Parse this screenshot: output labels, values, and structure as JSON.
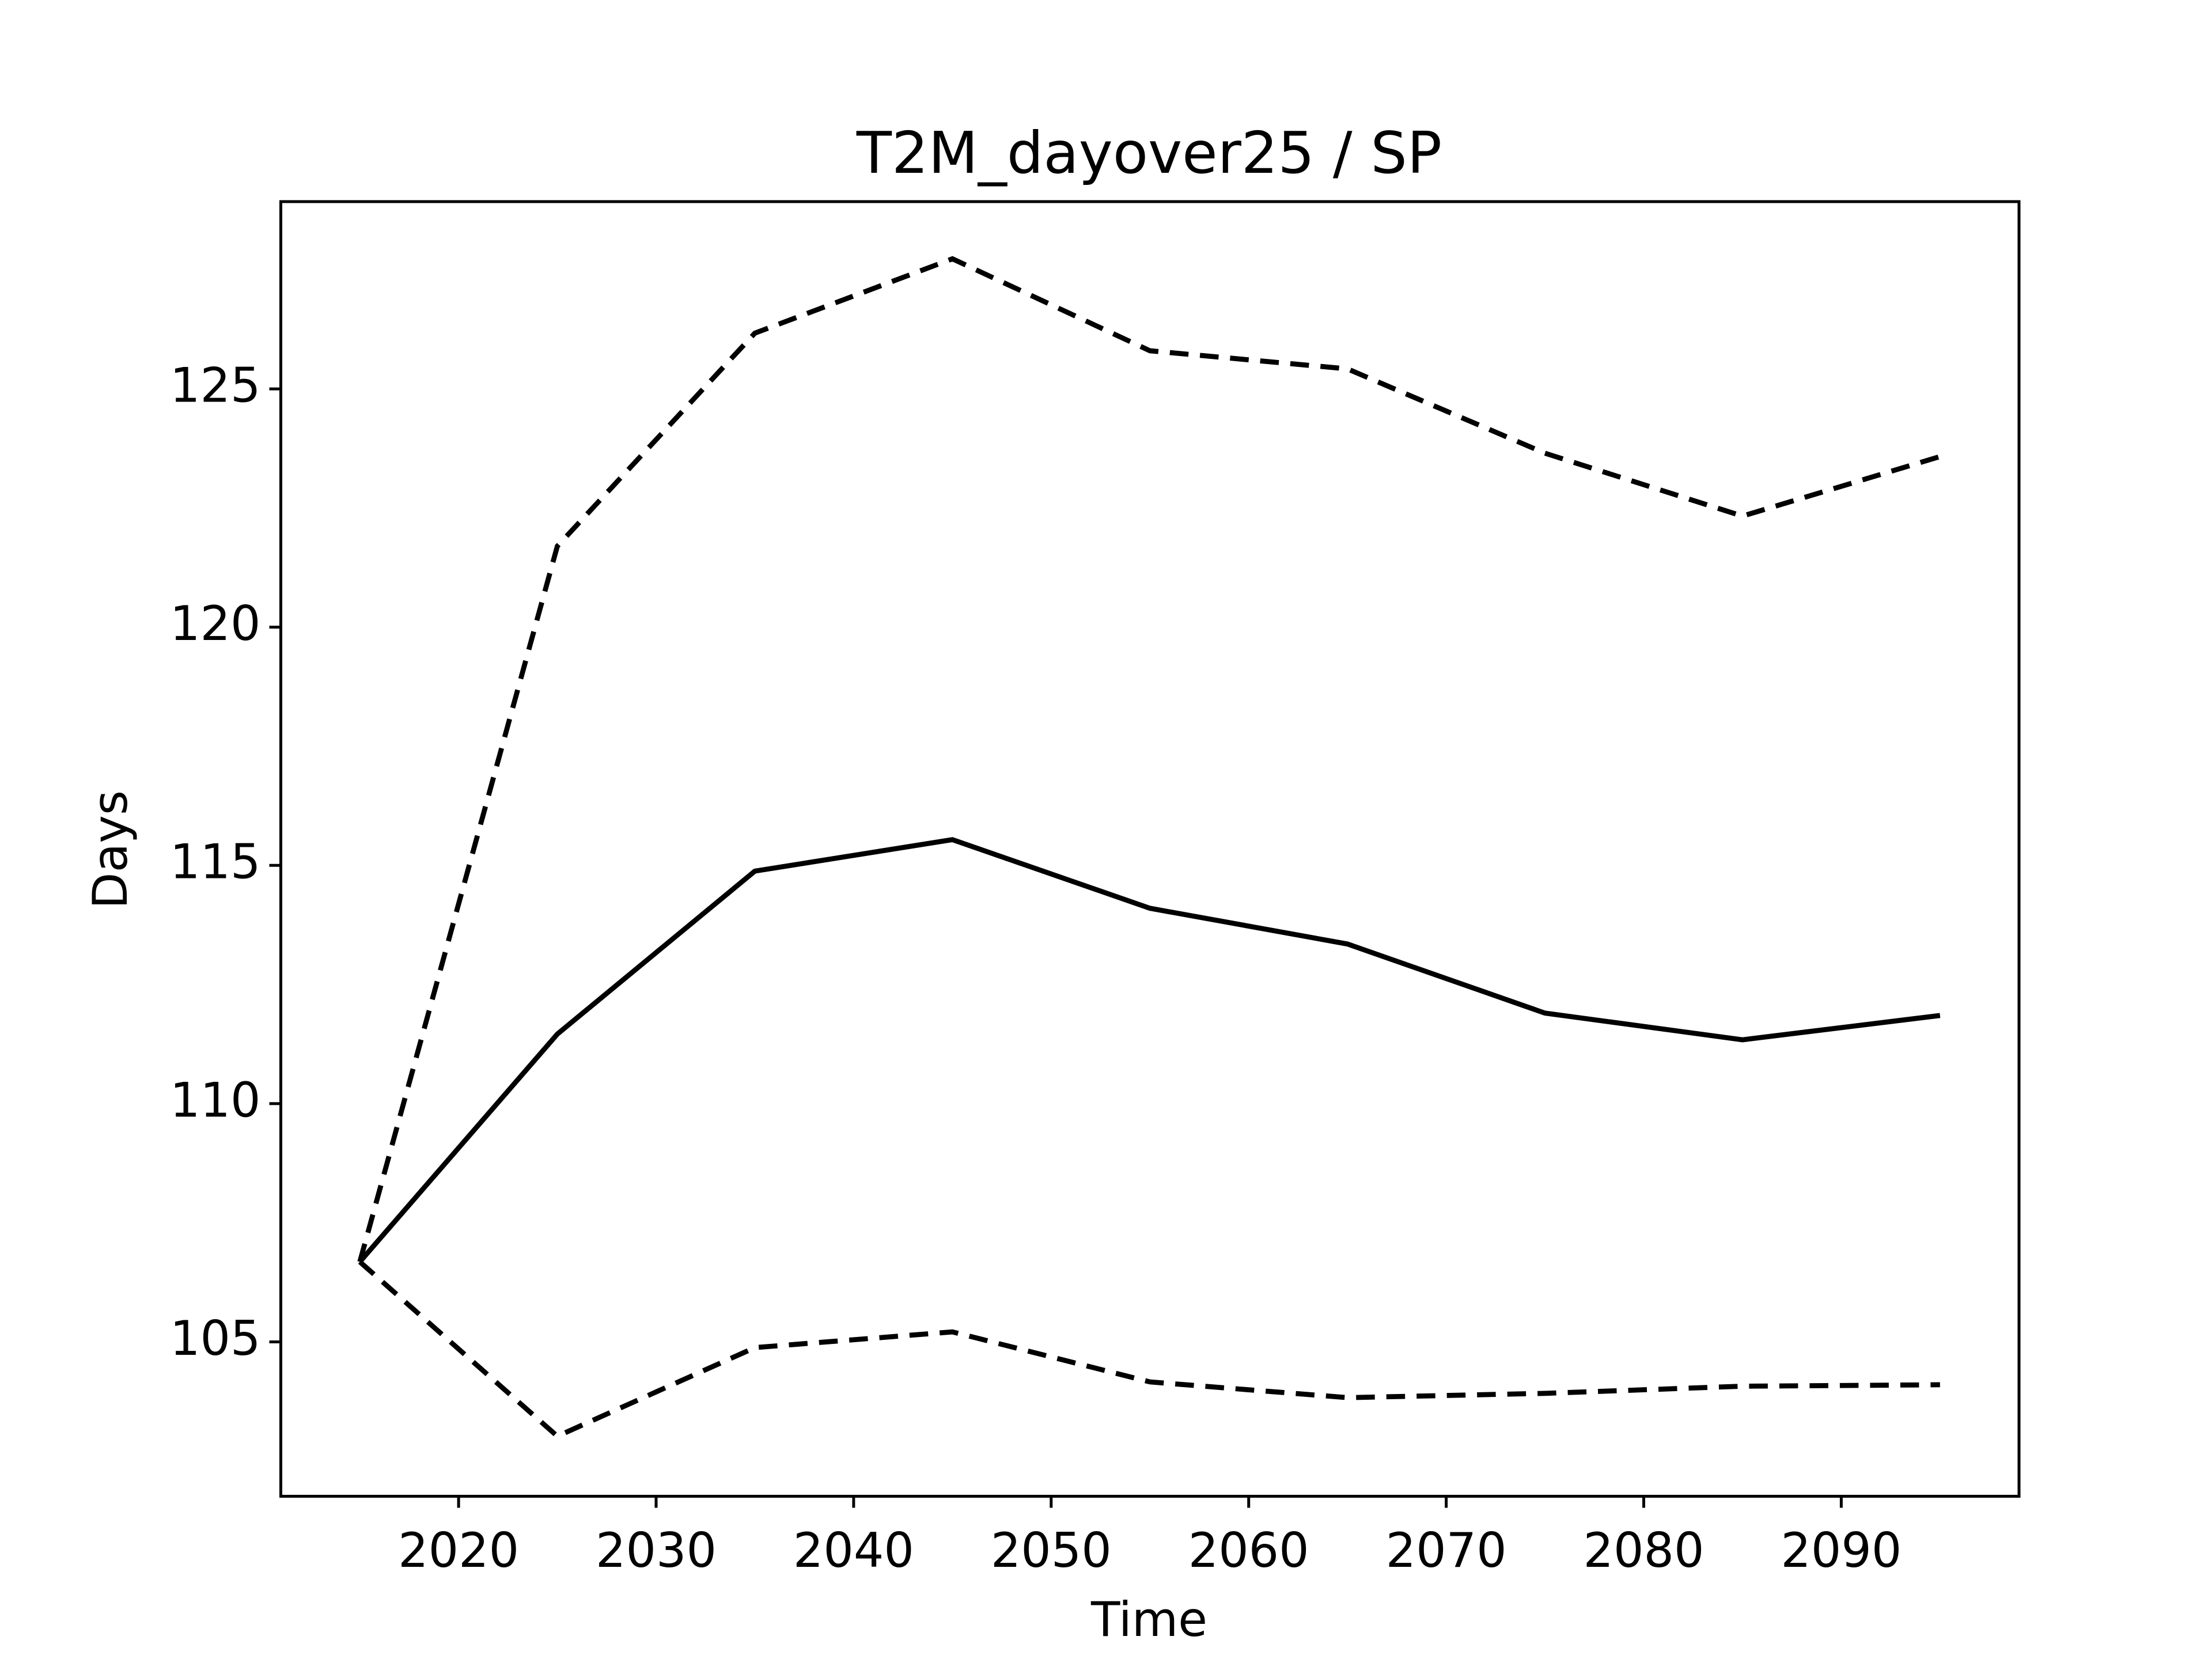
{
  "chart_data": {
    "type": "line",
    "title": "T2M_dayover25 / SP",
    "x_label": "Time",
    "y_label": "Days",
    "x": [
      2015,
      2025,
      2035,
      2045,
      2055,
      2065,
      2075,
      2085,
      2095
    ],
    "series": [
      {
        "color": "#000000",
        "dash": false,
        "values": [
          106.68,
          111.46,
          114.88,
          115.54,
          114.1,
          113.35,
          111.9,
          111.34,
          111.85
        ]
      },
      {
        "color": "#000000",
        "dash": true,
        "values": [
          106.68,
          121.7,
          126.17,
          127.73,
          125.8,
          125.42,
          123.65,
          122.33,
          123.58
        ]
      },
      {
        "color": "#000000",
        "dash": true,
        "values": [
          106.68,
          103.02,
          104.88,
          105.21,
          104.16,
          103.83,
          103.92,
          104.07,
          104.1
        ]
      }
    ],
    "xlim": [
      2011,
      2099
    ],
    "xticks": [
      2020,
      2030,
      2040,
      2050,
      2060,
      2070,
      2080,
      2090
    ],
    "ylim": [
      101.76,
      128.93
    ],
    "yticks": [
      105,
      110,
      115,
      120,
      125
    ],
    "grid": false
  }
}
